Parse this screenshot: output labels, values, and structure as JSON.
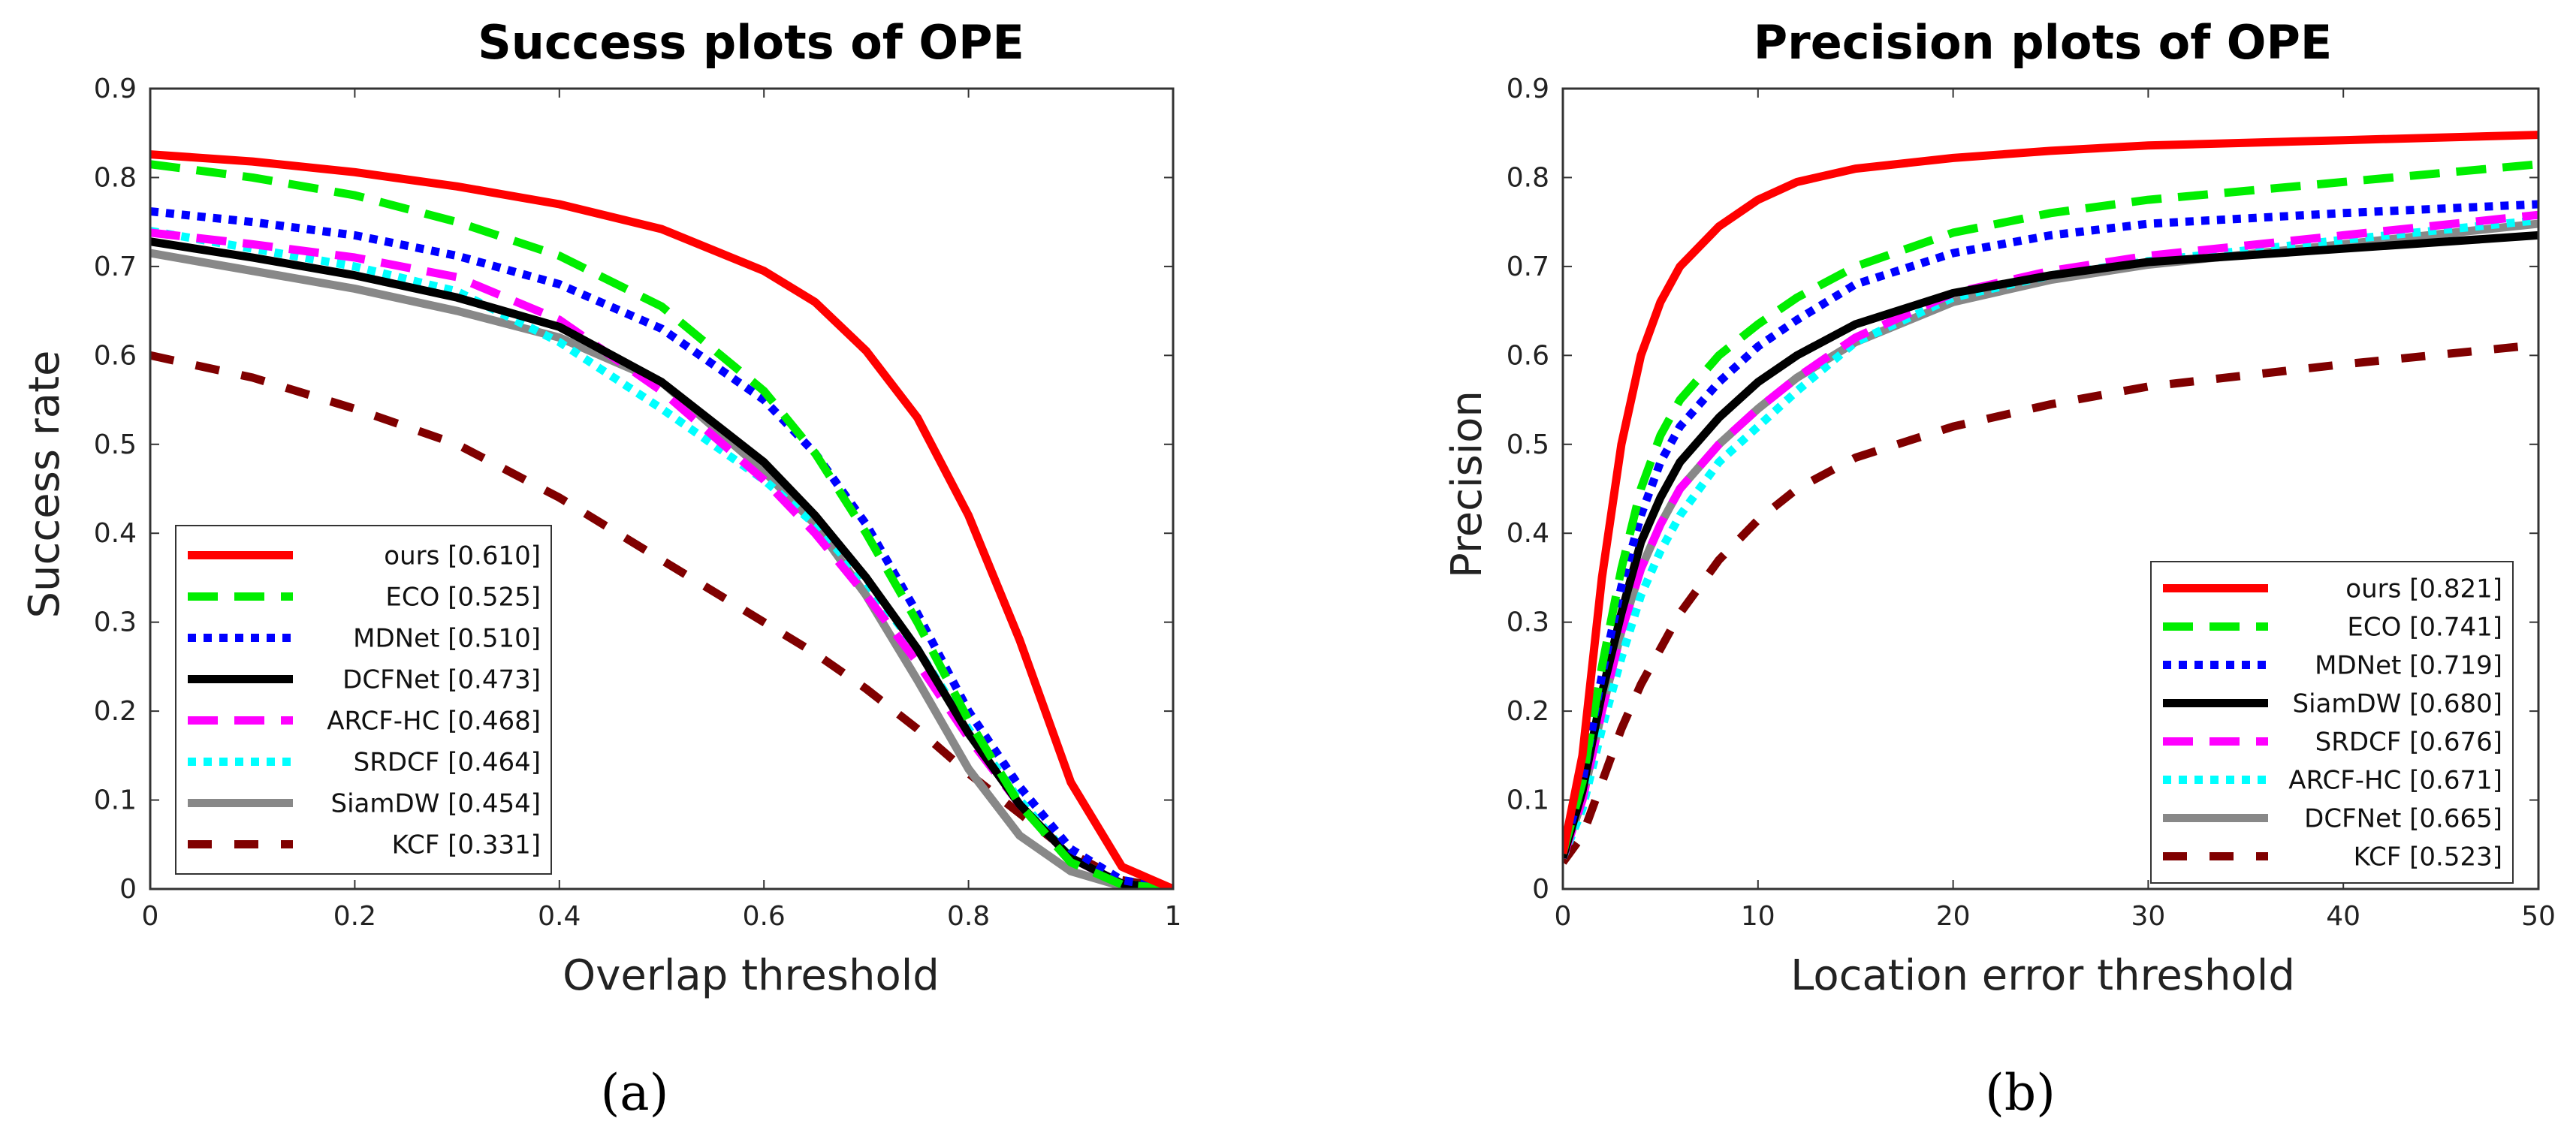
{
  "chart_data": [
    {
      "type": "line",
      "title": "Success plots of OPE",
      "xlabel": "Overlap threshold",
      "ylabel": "Success rate",
      "xlim": [
        0,
        1
      ],
      "ylim": [
        0,
        0.9
      ],
      "xticks": [
        0,
        0.2,
        0.4,
        0.6,
        0.8,
        1
      ],
      "xtick_labels": [
        "0",
        "0.2",
        "0.4",
        "0.6",
        "0.8",
        "1"
      ],
      "yticks": [
        0,
        0.1,
        0.2,
        0.3,
        0.4,
        0.5,
        0.6,
        0.7,
        0.8,
        0.9
      ],
      "ytick_labels": [
        "0",
        "0.1",
        "0.2",
        "0.3",
        "0.4",
        "0.5",
        "0.6",
        "0.7",
        "0.8",
        "0.9"
      ],
      "legend_position": "bottom-left",
      "caption": "(a)",
      "x": [
        0,
        0.1,
        0.2,
        0.3,
        0.4,
        0.5,
        0.6,
        0.65,
        0.7,
        0.75,
        0.8,
        0.85,
        0.9,
        0.95,
        1
      ],
      "series": [
        {
          "name": "ours",
          "label": "ours [0.610]",
          "color": "#ff0000",
          "dash": "solid",
          "values": [
            0.826,
            0.818,
            0.806,
            0.79,
            0.77,
            0.742,
            0.695,
            0.66,
            0.605,
            0.53,
            0.42,
            0.28,
            0.12,
            0.025,
            0.0
          ]
        },
        {
          "name": "ECO",
          "label": "ECO [0.525]",
          "color": "#00ee00",
          "dash": "longdash",
          "values": [
            0.815,
            0.8,
            0.78,
            0.75,
            0.712,
            0.655,
            0.56,
            0.49,
            0.4,
            0.3,
            0.19,
            0.095,
            0.03,
            0.005,
            0.0
          ]
        },
        {
          "name": "MDNet",
          "label": "MDNet [0.510]",
          "color": "#0000ff",
          "dash": "dot",
          "values": [
            0.762,
            0.75,
            0.735,
            0.712,
            0.68,
            0.63,
            0.55,
            0.49,
            0.41,
            0.31,
            0.2,
            0.115,
            0.045,
            0.01,
            0.0
          ]
        },
        {
          "name": "DCFNet",
          "label": "DCFNet [0.473]",
          "color": "#000000",
          "dash": "solid",
          "values": [
            0.728,
            0.71,
            0.69,
            0.665,
            0.632,
            0.57,
            0.48,
            0.42,
            0.35,
            0.27,
            0.175,
            0.095,
            0.035,
            0.006,
            0.0
          ]
        },
        {
          "name": "ARCF-HC",
          "label": "ARCF-HC [0.468]",
          "color": "#ff00ff",
          "dash": "longdash",
          "values": [
            0.738,
            0.725,
            0.71,
            0.688,
            0.64,
            0.56,
            0.46,
            0.4,
            0.33,
            0.255,
            0.17,
            0.095,
            0.035,
            0.006,
            0.0
          ]
        },
        {
          "name": "SRDCF",
          "label": "SRDCF [0.464]",
          "color": "#00ffff",
          "dash": "dot",
          "values": [
            0.74,
            0.72,
            0.7,
            0.672,
            0.615,
            0.54,
            0.46,
            0.41,
            0.345,
            0.27,
            0.18,
            0.1,
            0.035,
            0.006,
            0.0
          ]
        },
        {
          "name": "SiamDW",
          "label": "SiamDW [0.454]",
          "color": "#888888",
          "dash": "solid",
          "values": [
            0.715,
            0.695,
            0.675,
            0.65,
            0.62,
            0.57,
            0.47,
            0.41,
            0.33,
            0.235,
            0.135,
            0.06,
            0.02,
            0.003,
            0.0
          ]
        },
        {
          "name": "KCF",
          "label": "KCF [0.331]",
          "color": "#800000",
          "dash": "dash",
          "values": [
            0.6,
            0.575,
            0.54,
            0.5,
            0.44,
            0.37,
            0.3,
            0.265,
            0.225,
            0.18,
            0.13,
            0.085,
            0.04,
            0.01,
            0.0
          ]
        }
      ]
    },
    {
      "type": "line",
      "title": "Precision plots of OPE",
      "xlabel": "Location error threshold",
      "ylabel": "Precision",
      "xlim": [
        0,
        50
      ],
      "ylim": [
        0,
        0.9
      ],
      "xticks": [
        0,
        10,
        20,
        30,
        40,
        50
      ],
      "xtick_labels": [
        "0",
        "10",
        "20",
        "30",
        "40",
        "50"
      ],
      "yticks": [
        0,
        0.1,
        0.2,
        0.3,
        0.4,
        0.5,
        0.6,
        0.7,
        0.8,
        0.9
      ],
      "ytick_labels": [
        "0",
        "0.1",
        "0.2",
        "0.3",
        "0.4",
        "0.5",
        "0.6",
        "0.7",
        "0.8",
        "0.9"
      ],
      "legend_position": "bottom-right",
      "caption": "(b)",
      "x": [
        0,
        1,
        2,
        3,
        4,
        5,
        6,
        8,
        10,
        12,
        15,
        20,
        25,
        30,
        40,
        50
      ],
      "series": [
        {
          "name": "ours",
          "label": "ours [0.821]",
          "color": "#ff0000",
          "dash": "solid",
          "values": [
            0.04,
            0.15,
            0.35,
            0.5,
            0.6,
            0.66,
            0.7,
            0.745,
            0.775,
            0.795,
            0.81,
            0.822,
            0.83,
            0.836,
            0.842,
            0.848
          ]
        },
        {
          "name": "ECO",
          "label": "ECO [0.741]",
          "color": "#00ee00",
          "dash": "longdash",
          "values": [
            0.04,
            0.12,
            0.25,
            0.36,
            0.45,
            0.51,
            0.55,
            0.6,
            0.635,
            0.665,
            0.7,
            0.738,
            0.76,
            0.775,
            0.795,
            0.815
          ]
        },
        {
          "name": "MDNet",
          "label": "MDNet [0.719]",
          "color": "#0000ff",
          "dash": "dot",
          "values": [
            0.04,
            0.12,
            0.24,
            0.34,
            0.42,
            0.48,
            0.52,
            0.57,
            0.61,
            0.64,
            0.68,
            0.715,
            0.735,
            0.748,
            0.76,
            0.77
          ]
        },
        {
          "name": "SiamDW",
          "label": "SiamDW [0.680]",
          "color": "#000000",
          "dash": "solid",
          "values": [
            0.035,
            0.11,
            0.22,
            0.31,
            0.39,
            0.44,
            0.48,
            0.53,
            0.57,
            0.6,
            0.635,
            0.67,
            0.69,
            0.705,
            0.72,
            0.735
          ]
        },
        {
          "name": "SRDCF",
          "label": "SRDCF [0.676]",
          "color": "#ff00ff",
          "dash": "longdash",
          "values": [
            0.035,
            0.1,
            0.2,
            0.29,
            0.36,
            0.41,
            0.45,
            0.5,
            0.54,
            0.575,
            0.62,
            0.67,
            0.695,
            0.712,
            0.735,
            0.758
          ]
        },
        {
          "name": "ARCF-HC",
          "label": "ARCF-HC [0.671]",
          "color": "#00ffff",
          "dash": "dot",
          "values": [
            0.035,
            0.09,
            0.18,
            0.26,
            0.33,
            0.38,
            0.42,
            0.48,
            0.52,
            0.56,
            0.615,
            0.665,
            0.69,
            0.706,
            0.73,
            0.752
          ]
        },
        {
          "name": "DCFNet",
          "label": "DCFNet [0.665]",
          "color": "#888888",
          "dash": "solid",
          "values": [
            0.035,
            0.1,
            0.2,
            0.29,
            0.36,
            0.41,
            0.45,
            0.5,
            0.54,
            0.575,
            0.615,
            0.66,
            0.685,
            0.702,
            0.725,
            0.748
          ]
        },
        {
          "name": "KCF",
          "label": "KCF [0.523]",
          "color": "#800000",
          "dash": "dash",
          "values": [
            0.03,
            0.06,
            0.12,
            0.18,
            0.23,
            0.27,
            0.31,
            0.37,
            0.415,
            0.45,
            0.485,
            0.52,
            0.545,
            0.565,
            0.59,
            0.612
          ]
        }
      ]
    }
  ]
}
